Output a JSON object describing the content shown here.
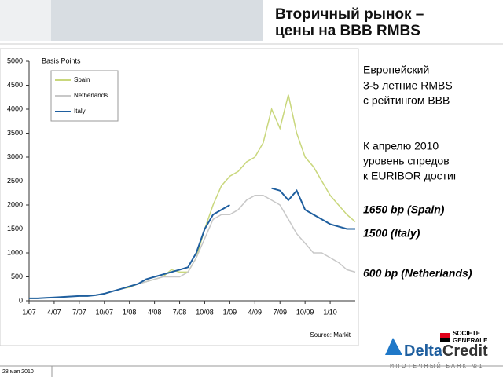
{
  "slide": {
    "title": [
      "Вторичный рынок –",
      "цены на BBB RMBS"
    ],
    "note1": [
      "Европейский",
      "3-5 летние RMBS",
      "с рейтингом BBB"
    ],
    "note2": [
      "К апрелю 2010",
      "уровень спредов",
      "к EURIBOR достиг"
    ],
    "levels": [
      "1650 bp (Spain)",
      "1500 (Italy)",
      "600 bp (Netherlands)"
    ],
    "date": "28 мая 2010",
    "logo_sg": [
      "SOCIETE",
      "GENERALE"
    ],
    "logo_delta": [
      "Delta",
      "Credit"
    ],
    "logo_tagline": "ИПОТЕЧНЫЙ БАНК №1"
  },
  "chart_data": {
    "type": "line",
    "y_label": "Basis Points",
    "source": "Source: Markit",
    "categories": [
      "1/07",
      null,
      null,
      "4/07",
      null,
      null,
      "7/07",
      null,
      null,
      "10/07",
      null,
      null,
      "1/08",
      null,
      null,
      "4/08",
      null,
      null,
      "7/08",
      null,
      null,
      "10/08",
      null,
      null,
      "1/09",
      null,
      null,
      "4/09",
      null,
      null,
      "7/09",
      null,
      null,
      "10/09",
      null,
      null,
      "1/10",
      null,
      null,
      null
    ],
    "series": [
      {
        "name": "Spain",
        "color": "#c9d77c",
        "values": [
          50,
          50,
          60,
          70,
          80,
          90,
          100,
          100,
          120,
          150,
          200,
          250,
          280,
          350,
          400,
          450,
          500,
          650,
          600,
          600,
          900,
          1500,
          2000,
          2400,
          2600,
          2700,
          2900,
          3000,
          3300,
          4000,
          3600,
          4300,
          3500,
          3000,
          2800,
          2500,
          2200,
          2000,
          1800,
          1650
        ]
      },
      {
        "name": "Netherlands",
        "color": "#c8c8c8",
        "values": [
          null,
          null,
          null,
          null,
          null,
          null,
          null,
          null,
          null,
          150,
          200,
          250,
          300,
          350,
          400,
          450,
          500,
          500,
          500,
          600,
          900,
          1300,
          1700,
          1800,
          1800,
          1900,
          2100,
          2200,
          2200,
          2100,
          2000,
          1700,
          1400,
          1200,
          1000,
          1000,
          900,
          800,
          650,
          600
        ]
      },
      {
        "name": "Italy",
        "color": "#1f5f9f",
        "values": [
          50,
          50,
          60,
          70,
          80,
          90,
          100,
          100,
          120,
          150,
          200,
          250,
          300,
          350,
          450,
          500,
          550,
          600,
          650,
          700,
          1000,
          1500,
          1800,
          1900,
          2000,
          null,
          null,
          null,
          null,
          2350,
          2300,
          2100,
          2300,
          1900,
          1800,
          1700,
          1600,
          1550,
          1500,
          1500
        ]
      }
    ],
    "ylim": [
      0,
      5000
    ],
    "yticks": [
      0,
      500,
      1000,
      1500,
      2000,
      2500,
      3000,
      3500,
      4000,
      4500,
      5000
    ],
    "grid": false,
    "legend": "upper left"
  }
}
